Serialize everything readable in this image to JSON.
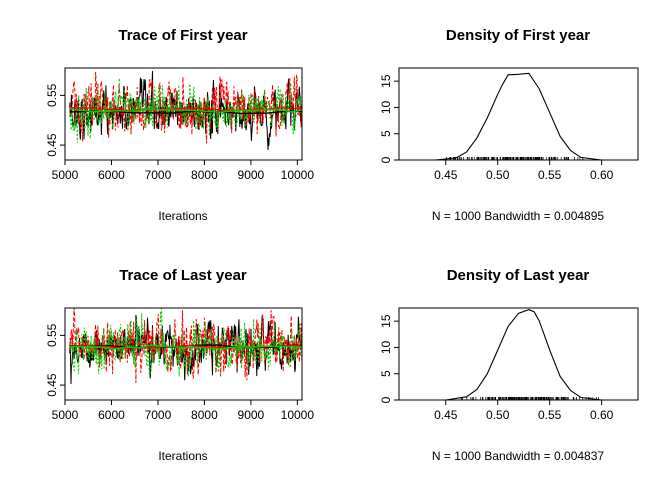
{
  "page": {
    "background": "#ffffff"
  },
  "chart_data": [
    {
      "type": "line",
      "title": "Trace of First year",
      "xlabel": "Iterations",
      "ylabel": "",
      "xlim": [
        5000,
        10100
      ],
      "ylim": [
        0.42,
        0.605
      ],
      "x_ticks": [
        5000,
        6000,
        7000,
        8000,
        9000,
        10000
      ],
      "y_ticks": [
        0.45,
        0.55
      ],
      "grid": false,
      "series": [
        {
          "color": "#000000",
          "x_start": 5100,
          "x_end": 10100,
          "mean": 0.515,
          "sd": 0.024,
          "smooth_level": 0.516
        },
        {
          "color": "#ff0000",
          "x_start": 5100,
          "x_end": 10100,
          "mean": 0.525,
          "sd": 0.026,
          "smooth_level": 0.522
        },
        {
          "color": "#00cc00",
          "x_start": 5100,
          "x_end": 10100,
          "mean": 0.52,
          "sd": 0.022,
          "smooth_level": 0.519
        }
      ]
    },
    {
      "type": "area",
      "title": "Density of First year",
      "xlabel": "N = 1000   Bandwidth = 0.004895",
      "ylabel": "",
      "xlim": [
        0.405,
        0.635
      ],
      "ylim": [
        0,
        17.5
      ],
      "x_ticks": [
        0.45,
        0.5,
        0.55,
        0.6
      ],
      "y_ticks": [
        0,
        5,
        10,
        15
      ],
      "grid": false,
      "curve": {
        "x": [
          0.44,
          0.46,
          0.47,
          0.48,
          0.49,
          0.5,
          0.505,
          0.51,
          0.52,
          0.53,
          0.54,
          0.55,
          0.56,
          0.57,
          0.58,
          0.6
        ],
        "y": [
          0,
          0.4,
          1.5,
          4.2,
          8,
          12.5,
          14.5,
          16.2,
          16.3,
          16.5,
          13.5,
          9,
          4.5,
          1.8,
          0.5,
          0
        ]
      },
      "rug_range": [
        0.445,
        0.59
      ]
    },
    {
      "type": "line",
      "title": "Trace of Last year",
      "xlabel": "Iterations",
      "ylabel": "",
      "xlim": [
        5000,
        10100
      ],
      "ylim": [
        0.42,
        0.605
      ],
      "x_ticks": [
        5000,
        6000,
        7000,
        8000,
        9000,
        10000
      ],
      "y_ticks": [
        0.45,
        0.55
      ],
      "grid": false,
      "series": [
        {
          "color": "#000000",
          "x_start": 5100,
          "x_end": 10100,
          "mean": 0.528,
          "sd": 0.022,
          "smooth_level": 0.528
        },
        {
          "color": "#ff0000",
          "x_start": 5100,
          "x_end": 10100,
          "mean": 0.53,
          "sd": 0.026,
          "smooth_level": 0.527
        },
        {
          "color": "#00cc00",
          "x_start": 5100,
          "x_end": 10100,
          "mean": 0.525,
          "sd": 0.024,
          "smooth_level": 0.526
        }
      ]
    },
    {
      "type": "area",
      "title": "Density of Last year",
      "xlabel": "N = 1000   Bandwidth = 0.004837",
      "ylabel": "",
      "xlim": [
        0.405,
        0.635
      ],
      "ylim": [
        0,
        17.5
      ],
      "x_ticks": [
        0.45,
        0.5,
        0.55,
        0.6
      ],
      "y_ticks": [
        0,
        5,
        10,
        15
      ],
      "grid": false,
      "curve": {
        "x": [
          0.45,
          0.47,
          0.48,
          0.49,
          0.5,
          0.51,
          0.52,
          0.53,
          0.535,
          0.54,
          0.55,
          0.56,
          0.57,
          0.58,
          0.6
        ],
        "y": [
          0,
          0.6,
          2,
          5,
          9.5,
          14,
          16.5,
          17.2,
          16.8,
          15,
          9.5,
          4.5,
          1.8,
          0.5,
          0
        ]
      },
      "rug_range": [
        0.455,
        0.6
      ]
    }
  ]
}
